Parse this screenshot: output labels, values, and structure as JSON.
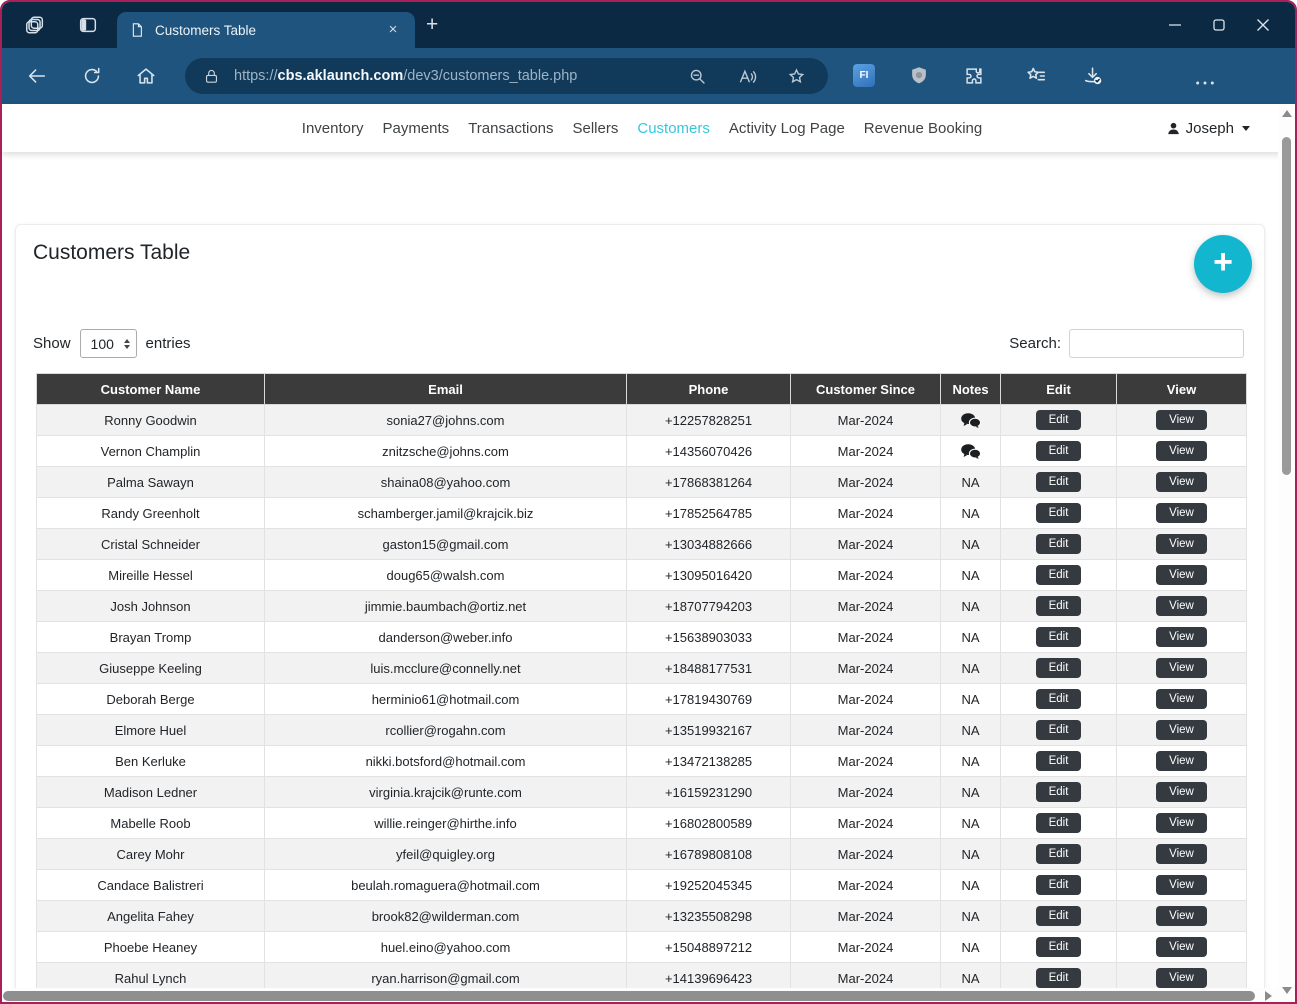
{
  "colors": {
    "titlebar": "#0c2943",
    "toolbar": "#1e547d",
    "address_pill": "#113a5a",
    "accent_cyan": "#12b7cf",
    "active_link_cyan": "#35c7dd",
    "table_header_bg": "#3b3b3b",
    "button_dark": "#343a40"
  },
  "window": {
    "tab_title": "Customers Table",
    "tab_close": "×",
    "new_tab": "+"
  },
  "browser": {
    "url_scheme": "https://",
    "url_host": "cbs.aklaunch.com",
    "url_path": "/dev3/customers_table.php"
  },
  "navbar": {
    "links": [
      {
        "label": "Inventory",
        "active": false
      },
      {
        "label": "Payments",
        "active": false
      },
      {
        "label": "Transactions",
        "active": false
      },
      {
        "label": "Sellers",
        "active": false
      },
      {
        "label": "Customers",
        "active": true
      },
      {
        "label": "Activity Log Page",
        "active": false
      },
      {
        "label": "Revenue Booking",
        "active": false
      }
    ],
    "user_name": "Joseph"
  },
  "page": {
    "title": "Customers Table",
    "add_button_label": "+",
    "show_label": "Show",
    "entries_per_page": "100",
    "entries_label": "entries",
    "search_label": "Search:",
    "search_value": ""
  },
  "table": {
    "columns": [
      "Customer Name",
      "Email",
      "Phone",
      "Customer Since",
      "Notes",
      "Edit",
      "View"
    ],
    "edit_label": "Edit",
    "view_label": "View",
    "rows": [
      {
        "name": "Ronny Goodwin",
        "email": "sonia27@johns.com",
        "phone": "+12257828251",
        "since": "Mar-2024",
        "notes": "chat"
      },
      {
        "name": "Vernon Champlin",
        "email": "znitzsche@johns.com",
        "phone": "+14356070426",
        "since": "Mar-2024",
        "notes": "chat"
      },
      {
        "name": "Palma Sawayn",
        "email": "shaina08@yahoo.com",
        "phone": "+17868381264",
        "since": "Mar-2024",
        "notes": "NA"
      },
      {
        "name": "Randy Greenholt",
        "email": "schamberger.jamil@krajcik.biz",
        "phone": "+17852564785",
        "since": "Mar-2024",
        "notes": "NA"
      },
      {
        "name": "Cristal Schneider",
        "email": "gaston15@gmail.com",
        "phone": "+13034882666",
        "since": "Mar-2024",
        "notes": "NA"
      },
      {
        "name": "Mireille Hessel",
        "email": "doug65@walsh.com",
        "phone": "+13095016420",
        "since": "Mar-2024",
        "notes": "NA"
      },
      {
        "name": "Josh Johnson",
        "email": "jimmie.baumbach@ortiz.net",
        "phone": "+18707794203",
        "since": "Mar-2024",
        "notes": "NA"
      },
      {
        "name": "Brayan Tromp",
        "email": "danderson@weber.info",
        "phone": "+15638903033",
        "since": "Mar-2024",
        "notes": "NA"
      },
      {
        "name": "Giuseppe Keeling",
        "email": "luis.mcclure@connelly.net",
        "phone": "+18488177531",
        "since": "Mar-2024",
        "notes": "NA"
      },
      {
        "name": "Deborah Berge",
        "email": "herminio61@hotmail.com",
        "phone": "+17819430769",
        "since": "Mar-2024",
        "notes": "NA"
      },
      {
        "name": "Elmore Huel",
        "email": "rcollier@rogahn.com",
        "phone": "+13519932167",
        "since": "Mar-2024",
        "notes": "NA"
      },
      {
        "name": "Ben Kerluke",
        "email": "nikki.botsford@hotmail.com",
        "phone": "+13472138285",
        "since": "Mar-2024",
        "notes": "NA"
      },
      {
        "name": "Madison Ledner",
        "email": "virginia.krajcik@runte.com",
        "phone": "+16159231290",
        "since": "Mar-2024",
        "notes": "NA"
      },
      {
        "name": "Mabelle Roob",
        "email": "willie.reinger@hirthe.info",
        "phone": "+16802800589",
        "since": "Mar-2024",
        "notes": "NA"
      },
      {
        "name": "Carey Mohr",
        "email": "yfeil@quigley.org",
        "phone": "+16789808108",
        "since": "Mar-2024",
        "notes": "NA"
      },
      {
        "name": "Candace Balistreri",
        "email": "beulah.romaguera@hotmail.com",
        "phone": "+19252045345",
        "since": "Mar-2024",
        "notes": "NA"
      },
      {
        "name": "Angelita Fahey",
        "email": "brook82@wilderman.com",
        "phone": "+13235508298",
        "since": "Mar-2024",
        "notes": "NA"
      },
      {
        "name": "Phoebe Heaney",
        "email": "huel.eino@yahoo.com",
        "phone": "+15048897212",
        "since": "Mar-2024",
        "notes": "NA"
      },
      {
        "name": "Rahul Lynch",
        "email": "ryan.harrison@gmail.com",
        "phone": "+14139696423",
        "since": "Mar-2024",
        "notes": "NA"
      }
    ]
  }
}
